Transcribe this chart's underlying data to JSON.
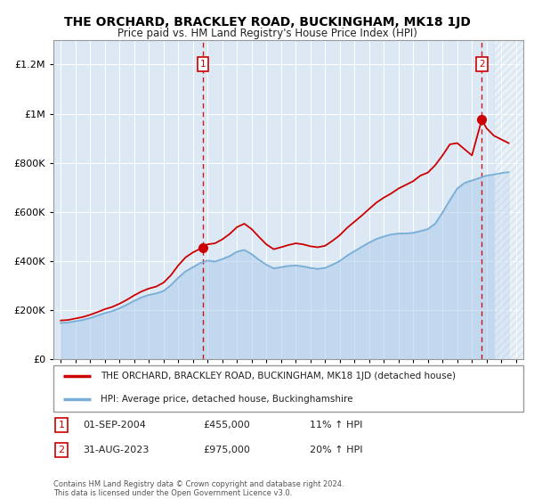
{
  "title": "THE ORCHARD, BRACKLEY ROAD, BUCKINGHAM, MK18 1JD",
  "subtitle": "Price paid vs. HM Land Registry's House Price Index (HPI)",
  "legend_line1": "THE ORCHARD, BRACKLEY ROAD, BUCKINGHAM, MK18 1JD (detached house)",
  "legend_line2": "HPI: Average price, detached house, Buckinghamshire",
  "annotation1_label": "1",
  "annotation1_date": "01-SEP-2004",
  "annotation1_price": "£455,000",
  "annotation1_hpi": "11% ↑ HPI",
  "annotation2_label": "2",
  "annotation2_date": "31-AUG-2023",
  "annotation2_price": "£975,000",
  "annotation2_hpi": "20% ↑ HPI",
  "footer": "Contains HM Land Registry data © Crown copyright and database right 2024.\nThis data is licensed under the Open Government Licence v3.0.",
  "plot_bg": "#dce9f5",
  "hatch_color": "#b8cfe0",
  "red_color": "#cc0000",
  "blue_color": "#7aaed6",
  "blue_fill": "#a8c8e8",
  "marker1_x": 2004.67,
  "marker1_y": 455000,
  "marker2_x": 2023.67,
  "marker2_y": 975000,
  "vline1_x": 2004.67,
  "vline2_x": 2023.67,
  "ylim": [
    0,
    1300000
  ],
  "xlim": [
    1994.5,
    2026.5
  ],
  "hatch_start": 2024.5,
  "yticks": [
    0,
    200000,
    400000,
    600000,
    800000,
    1000000,
    1200000
  ],
  "hpi_years": [
    1995,
    1995.5,
    1996,
    1996.5,
    1997,
    1997.5,
    1998,
    1998.5,
    1999,
    1999.5,
    2000,
    2000.5,
    2001,
    2001.5,
    2002,
    2002.5,
    2003,
    2003.5,
    2004,
    2004.5,
    2005,
    2005.5,
    2006,
    2006.5,
    2007,
    2007.5,
    2008,
    2008.5,
    2009,
    2009.5,
    2010,
    2010.5,
    2011,
    2011.5,
    2012,
    2012.5,
    2013,
    2013.5,
    2014,
    2014.5,
    2015,
    2015.5,
    2016,
    2016.5,
    2017,
    2017.5,
    2018,
    2018.5,
    2019,
    2019.5,
    2020,
    2020.5,
    2021,
    2021.5,
    2022,
    2022.5,
    2023,
    2023.5,
    2024,
    2024.5,
    2025,
    2025.5
  ],
  "hpi_values": [
    148000,
    150000,
    155000,
    160000,
    168000,
    178000,
    188000,
    196000,
    208000,
    222000,
    238000,
    252000,
    262000,
    268000,
    278000,
    302000,
    332000,
    358000,
    375000,
    392000,
    402000,
    398000,
    408000,
    420000,
    438000,
    445000,
    428000,
    405000,
    385000,
    370000,
    375000,
    380000,
    382000,
    378000,
    372000,
    368000,
    372000,
    385000,
    400000,
    422000,
    440000,
    458000,
    475000,
    490000,
    500000,
    508000,
    512000,
    512000,
    515000,
    522000,
    530000,
    552000,
    598000,
    648000,
    695000,
    718000,
    728000,
    738000,
    748000,
    752000,
    758000,
    762000
  ],
  "red_years": [
    1995,
    1995.5,
    1996,
    1996.5,
    1997,
    1997.5,
    1998,
    1998.5,
    1999,
    1999.5,
    2000,
    2000.5,
    2001,
    2001.5,
    2002,
    2002.5,
    2003,
    2003.5,
    2004,
    2004.67,
    2005,
    2005.5,
    2006,
    2006.5,
    2007,
    2007.5,
    2008,
    2008.5,
    2009,
    2009.5,
    2010,
    2010.5,
    2011,
    2011.5,
    2012,
    2012.5,
    2013,
    2013.5,
    2014,
    2014.5,
    2015,
    2015.5,
    2016,
    2016.5,
    2017,
    2017.5,
    2018,
    2018.5,
    2019,
    2019.5,
    2020,
    2020.5,
    2021,
    2021.5,
    2022,
    2022.5,
    2023,
    2023.67,
    2024,
    2024.5,
    2025,
    2025.5
  ],
  "red_values": [
    158000,
    160000,
    166000,
    172000,
    181000,
    192000,
    204000,
    213000,
    226000,
    242000,
    260000,
    276000,
    288000,
    296000,
    312000,
    342000,
    382000,
    415000,
    435000,
    455000,
    468000,
    472000,
    488000,
    510000,
    538000,
    552000,
    530000,
    498000,
    468000,
    448000,
    456000,
    465000,
    472000,
    468000,
    460000,
    456000,
    462000,
    482000,
    505000,
    535000,
    560000,
    585000,
    612000,
    638000,
    658000,
    675000,
    695000,
    710000,
    725000,
    748000,
    760000,
    790000,
    830000,
    875000,
    880000,
    855000,
    830000,
    975000,
    940000,
    910000,
    895000,
    880000
  ]
}
